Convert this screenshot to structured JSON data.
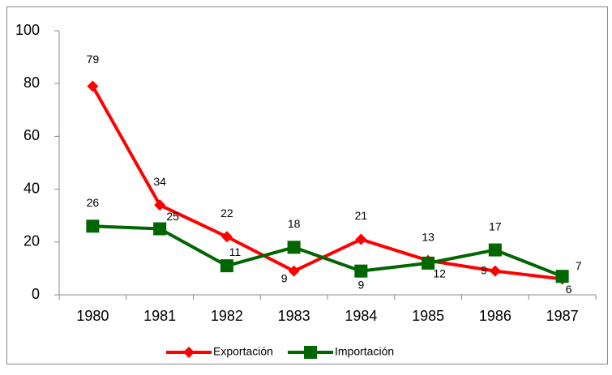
{
  "chart_data": {
    "type": "line",
    "categories": [
      "1980",
      "1981",
      "1982",
      "1983",
      "1984",
      "1985",
      "1986",
      "1987"
    ],
    "series": [
      {
        "name": "Exportación",
        "color": "#ff0000",
        "marker": "diamond",
        "values": [
          79,
          34,
          22,
          9,
          21,
          13,
          9,
          6
        ]
      },
      {
        "name": "Importación",
        "color": "#006600",
        "marker": "square",
        "values": [
          26,
          25,
          11,
          18,
          9,
          12,
          17,
          7
        ]
      }
    ],
    "ylim": [
      0,
      100
    ],
    "yticks": [
      0,
      20,
      40,
      60,
      80,
      100
    ],
    "grid": false,
    "legend": "bottom"
  }
}
